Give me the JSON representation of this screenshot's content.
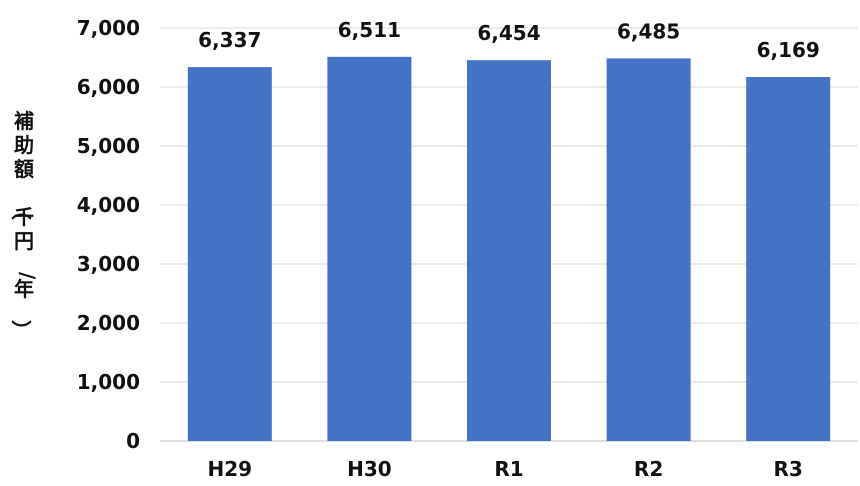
{
  "chart_data": {
    "type": "bar",
    "title": "",
    "xlabel": "",
    "ylabel": "補助額（千円/年）",
    "categories": [
      "H29",
      "H30",
      "R1",
      "R2",
      "R3"
    ],
    "values": [
      6337,
      6511,
      6454,
      6485,
      6169
    ],
    "data_labels": [
      "6,337",
      "6,511",
      "6,454",
      "6,485",
      "6,169"
    ],
    "ylim": [
      0,
      7000
    ],
    "yticks": [
      0,
      1000,
      2000,
      3000,
      4000,
      5000,
      6000,
      7000
    ],
    "ytick_labels": [
      "0",
      "1,000",
      "2,000",
      "3,000",
      "4,000",
      "5,000",
      "6,000",
      "7,000"
    ],
    "bar_color": "#4472C4",
    "grid": true,
    "legend": "none"
  }
}
